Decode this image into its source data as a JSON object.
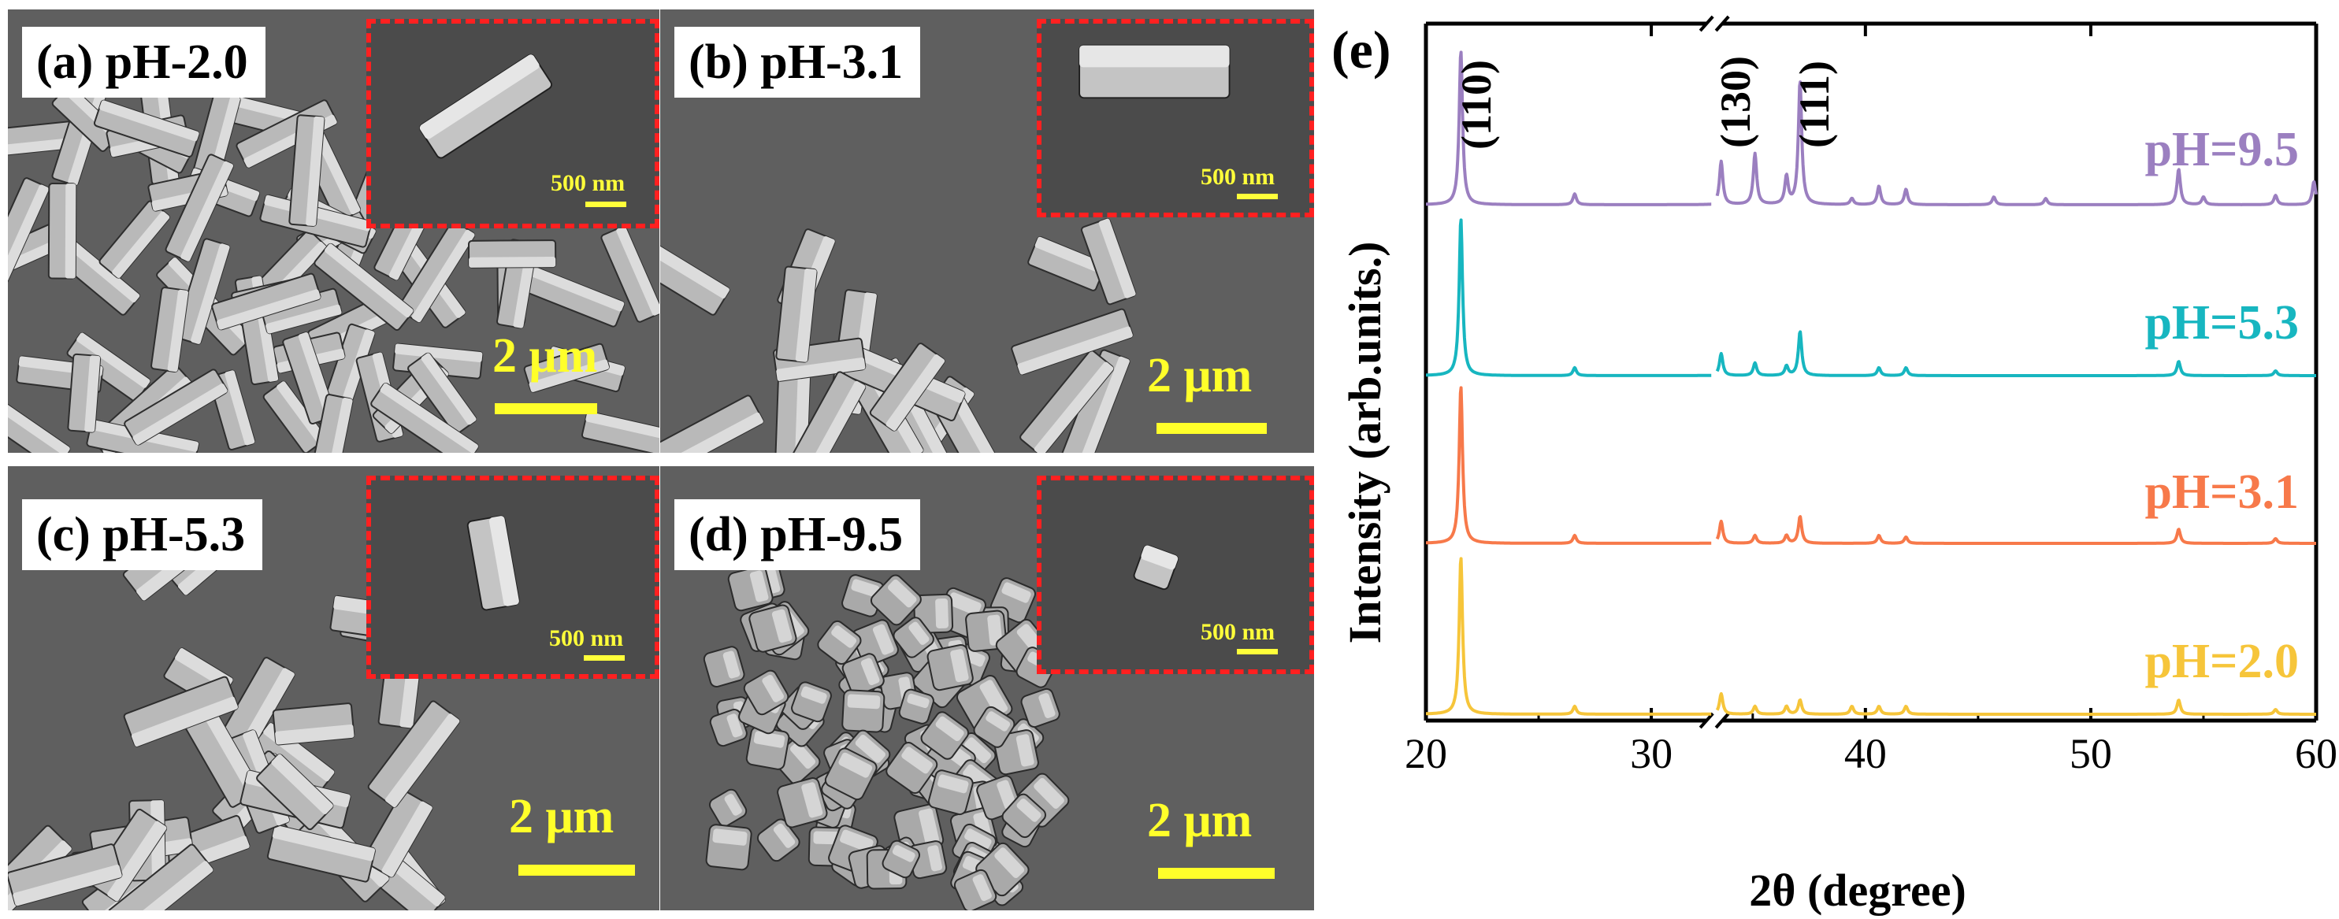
{
  "colors": {
    "sem_background": "#5f5f5f",
    "inset_border": "#ff2020",
    "scale_bar": "#ffff2a",
    "series_pH_2_0": "#f6c53a",
    "series_pH_3_1": "#f7794a",
    "series_pH_5_3": "#17b6c0",
    "series_pH_9_5": "#9b7fc0"
  },
  "panels": [
    {
      "label": "(a) pH-2.0",
      "scale": "2 μm",
      "inset_scale": "500 nm"
    },
    {
      "label": "(b) pH-3.1",
      "scale": "2 μm",
      "inset_scale": "500 nm"
    },
    {
      "label": "(c) pH-5.3",
      "scale": "2 μm",
      "inset_scale": "500 nm"
    },
    {
      "label": "(d) pH-9.5",
      "scale": "2 μm",
      "inset_scale": "500 nm"
    }
  ],
  "chart_data": {
    "type": "line",
    "panel_label": "(e)",
    "xlabel": "2θ (degree)",
    "ylabel": "Intensity (arb.units.)",
    "xlim": [
      20,
      60
    ],
    "xticks": [
      20,
      30,
      40,
      50,
      60
    ],
    "axis_break": [
      32.8,
      33.3
    ],
    "y_ticks_shown": false,
    "peak_annotations": [
      {
        "text": "(110)",
        "x": 21.6
      },
      {
        "text": "(130)",
        "x": 33.6
      },
      {
        "text": "(111)",
        "x": 37.1
      }
    ],
    "series": [
      {
        "name": "pH=9.5",
        "color": "#9b7fc0",
        "peaks": [
          [
            21.55,
            1.0
          ],
          [
            26.6,
            0.07
          ],
          [
            33.6,
            0.28
          ],
          [
            35.1,
            0.33
          ],
          [
            36.5,
            0.18
          ],
          [
            37.1,
            0.8
          ],
          [
            39.4,
            0.04
          ],
          [
            40.6,
            0.12
          ],
          [
            41.8,
            0.1
          ],
          [
            45.7,
            0.05
          ],
          [
            48.0,
            0.04
          ],
          [
            53.9,
            0.23
          ],
          [
            55.0,
            0.05
          ],
          [
            58.2,
            0.06
          ],
          [
            59.9,
            0.15
          ]
        ]
      },
      {
        "name": "pH=5.3",
        "color": "#17b6c0",
        "peaks": [
          [
            21.55,
            1.0
          ],
          [
            26.6,
            0.05
          ],
          [
            33.6,
            0.14
          ],
          [
            35.1,
            0.08
          ],
          [
            36.5,
            0.06
          ],
          [
            37.1,
            0.28
          ],
          [
            40.6,
            0.05
          ],
          [
            41.8,
            0.05
          ],
          [
            53.9,
            0.09
          ],
          [
            58.2,
            0.03
          ]
        ]
      },
      {
        "name": "pH=3.1",
        "color": "#f7794a",
        "peaks": [
          [
            21.55,
            1.0
          ],
          [
            26.6,
            0.05
          ],
          [
            33.6,
            0.14
          ],
          [
            35.1,
            0.05
          ],
          [
            36.5,
            0.05
          ],
          [
            37.1,
            0.17
          ],
          [
            40.6,
            0.05
          ],
          [
            41.8,
            0.04
          ],
          [
            53.9,
            0.09
          ],
          [
            58.2,
            0.03
          ]
        ]
      },
      {
        "name": "pH=2.0",
        "color": "#f6c53a",
        "peaks": [
          [
            21.55,
            1.0
          ],
          [
            26.6,
            0.05
          ],
          [
            33.6,
            0.13
          ],
          [
            35.1,
            0.05
          ],
          [
            36.5,
            0.05
          ],
          [
            37.1,
            0.09
          ],
          [
            39.4,
            0.05
          ],
          [
            40.6,
            0.05
          ],
          [
            41.8,
            0.05
          ],
          [
            53.9,
            0.09
          ],
          [
            58.2,
            0.03
          ]
        ]
      }
    ]
  }
}
